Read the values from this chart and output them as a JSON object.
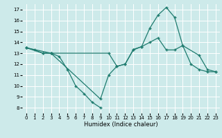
{
  "xlabel": "Humidex (Indice chaleur)",
  "bg_color": "#cdeaea",
  "line_color": "#1e7b6e",
  "grid_color": "#ffffff",
  "xlim": [
    -0.5,
    23.5
  ],
  "ylim": [
    7.5,
    17.5
  ],
  "xticks": [
    0,
    1,
    2,
    3,
    4,
    5,
    6,
    7,
    8,
    9,
    10,
    11,
    12,
    13,
    14,
    15,
    16,
    17,
    18,
    19,
    20,
    21,
    22,
    23
  ],
  "yticks": [
    8,
    9,
    10,
    11,
    12,
    13,
    14,
    15,
    16,
    17
  ],
  "lineA_x": [
    0,
    1,
    2,
    3,
    10,
    11,
    12,
    13,
    14,
    15,
    16,
    17,
    18,
    19,
    21,
    22,
    23
  ],
  "lineA_y": [
    13.5,
    13.3,
    13.0,
    13.0,
    13.0,
    11.8,
    12.0,
    13.35,
    13.6,
    15.3,
    16.5,
    17.2,
    16.3,
    13.7,
    12.8,
    11.5,
    11.3
  ],
  "lineB_x": [
    0,
    2,
    3,
    4,
    5,
    6,
    7,
    8,
    9
  ],
  "lineB_y": [
    13.5,
    13.0,
    13.0,
    12.7,
    11.5,
    10.0,
    9.3,
    8.5,
    8.0
  ],
  "lineC_x": [
    0,
    3,
    9,
    10,
    11,
    12,
    13,
    14,
    15,
    16,
    17,
    18,
    19,
    20,
    21,
    22,
    23
  ],
  "lineC_y": [
    13.5,
    13.0,
    8.8,
    11.0,
    11.8,
    12.0,
    13.3,
    13.6,
    14.0,
    14.4,
    13.3,
    13.3,
    13.7,
    12.0,
    11.5,
    11.3,
    11.3
  ]
}
